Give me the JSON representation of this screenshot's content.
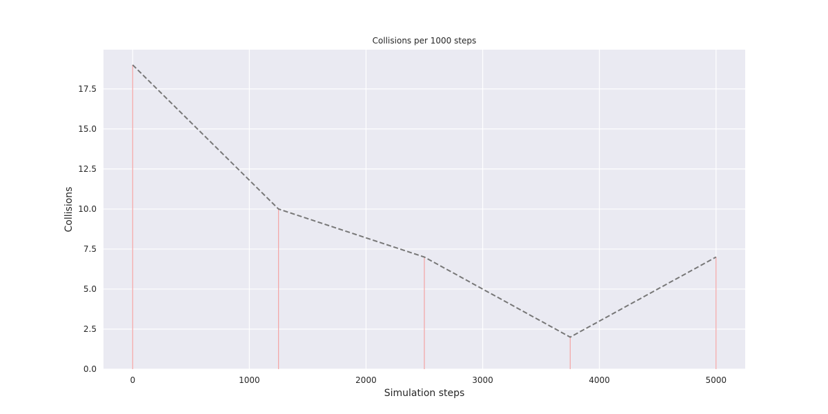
{
  "chart_data": {
    "type": "line",
    "title": "Collisions per 1000 steps",
    "xlabel": "Simulation steps",
    "ylabel": "Collisions",
    "xlim": [
      -250,
      5250
    ],
    "ylim": [
      0,
      19.95
    ],
    "x_ticks": [
      0,
      1000,
      2000,
      3000,
      4000,
      5000
    ],
    "x_tick_labels": [
      "0",
      "1000",
      "2000",
      "3000",
      "4000",
      "5000"
    ],
    "y_ticks": [
      0,
      2.5,
      5,
      7.5,
      10,
      12.5,
      15,
      17.5
    ],
    "y_tick_labels": [
      "0.0",
      "2.5",
      "5.0",
      "7.5",
      "10.0",
      "12.5",
      "15.0",
      "17.5"
    ],
    "grid": true,
    "series": [
      {
        "x": [
          0,
          1250,
          2500,
          3750,
          5000
        ],
        "values": [
          19,
          10,
          7,
          2,
          7
        ],
        "line_style": "dashed",
        "color": "#777777",
        "stems": true,
        "stem_color": "#f4a3a3"
      }
    ],
    "background_color": "#eaeaf2"
  }
}
